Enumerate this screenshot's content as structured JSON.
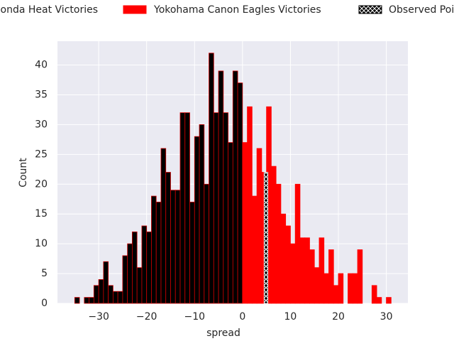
{
  "chart_data": {
    "type": "histogram",
    "xlabel": "spread",
    "ylabel": "Count",
    "xlim": [
      -38.6,
      34.5
    ],
    "ylim": [
      0,
      44
    ],
    "xticks": [
      {
        "value": -30,
        "label": "−30"
      },
      {
        "value": -20,
        "label": "−20"
      },
      {
        "value": -10,
        "label": "−10"
      },
      0,
      10,
      20,
      30
    ],
    "yticks": [
      0,
      5,
      10,
      15,
      20,
      25,
      30,
      35,
      40
    ],
    "grid": true,
    "legend": "top",
    "series": [
      {
        "name": "Honda Heat Victories",
        "color": "#000000",
        "edgecolor": "#cc0000",
        "bins": [
          -35,
          -34,
          -33,
          -32,
          -31,
          -30,
          -29,
          -28,
          -27,
          -26,
          -25,
          -24,
          -23,
          -22,
          -21,
          -20,
          -19,
          -18,
          -17,
          -16,
          -15,
          -14,
          -13,
          -12,
          -11,
          -10,
          -9,
          -8,
          -7,
          -6,
          -5,
          -4,
          -3,
          -2,
          -1,
          0
        ],
        "values": [
          1,
          0,
          1,
          1,
          3,
          4,
          7,
          3,
          2,
          2,
          8,
          10,
          12,
          6,
          13,
          12,
          18,
          17,
          26,
          22,
          19,
          19,
          32,
          32,
          17,
          28,
          30,
          20,
          42,
          32,
          39,
          32,
          27,
          39,
          37
        ]
      },
      {
        "name": "Yokohama Canon Eagles Victories",
        "color": "#ff0000",
        "edgecolor": "#ff0000",
        "bins": [
          0,
          1,
          2,
          3,
          4,
          5,
          6,
          7,
          8,
          9,
          10,
          11,
          12,
          13,
          14,
          15,
          16,
          17,
          18,
          19,
          20,
          21,
          22,
          23,
          24,
          25,
          26,
          27,
          28,
          29,
          30,
          31
        ],
        "values": [
          27,
          33,
          18,
          26,
          22,
          33,
          23,
          20,
          15,
          13,
          10,
          20,
          11,
          11,
          9,
          6,
          11,
          5,
          9,
          3,
          5,
          0,
          5,
          5,
          9,
          0,
          0,
          3,
          1,
          0,
          1
        ]
      },
      {
        "name": "Observed Point",
        "color": "hatch",
        "edgecolor": "#ffffff",
        "bins": [
          4.5,
          5.3
        ],
        "values": [
          22
        ]
      }
    ]
  }
}
